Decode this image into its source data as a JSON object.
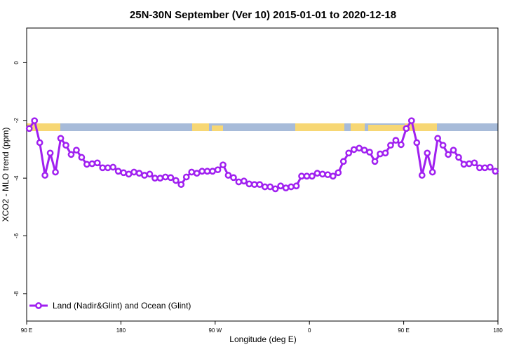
{
  "chart_data": {
    "type": "line",
    "title": "25N-30N September (Ver 10)   2015-01-01 to 2020-12-18",
    "xlabel": "Longitude (deg E)",
    "ylabel": "XCO2 - MLO trend (ppm)",
    "xlim": [
      90,
      540
    ],
    "ylim": [
      -8.95,
      1.2
    ],
    "xticks": [
      {
        "value": 90,
        "label": "90 E"
      },
      {
        "value": 180,
        "label": "180"
      },
      {
        "value": 270,
        "label": "90 W"
      },
      {
        "value": 360,
        "label": "0"
      },
      {
        "value": 450,
        "label": "90 E"
      },
      {
        "value": 540,
        "label": "180"
      }
    ],
    "yticks": [
      0,
      -2,
      -4,
      -6,
      -8
    ],
    "legend": "bottom-left",
    "x": [
      92.5,
      97.5,
      102.5,
      107.5,
      112.5,
      117.5,
      122.5,
      127.5,
      132.5,
      137.5,
      142.5,
      147.5,
      152.5,
      157.5,
      162.5,
      167.5,
      172.5,
      177.5,
      182.5,
      187.5,
      192.5,
      197.5,
      202.5,
      207.5,
      212.5,
      217.5,
      222.5,
      227.5,
      232.5,
      237.5,
      242.5,
      247.5,
      252.5,
      257.5,
      262.5,
      267.5,
      272.5,
      277.5,
      282.5,
      287.5,
      292.5,
      297.5,
      302.5,
      307.5,
      312.5,
      317.5,
      322.5,
      327.5,
      332.5,
      337.5,
      342.5,
      347.5,
      352.5,
      357.5,
      362.5,
      367.5,
      372.5,
      377.5,
      382.5,
      387.5,
      392.5,
      397.5,
      402.5,
      407.5,
      412.5,
      417.5,
      422.5,
      427.5,
      432.5,
      437.5,
      442.5,
      447.5,
      452.5,
      457.5,
      462.5,
      467.5,
      472.5,
      477.5,
      482.5,
      487.5,
      492.5,
      497.5,
      502.5,
      507.5,
      512.5,
      517.5,
      522.5,
      527.5,
      532.5,
      537.5
    ],
    "series": [
      {
        "name": "Land (Nadir&Glint) and Ocean (Glint)",
        "color": "#a020f0",
        "values": [
          -2.28,
          -2.01,
          -2.77,
          -3.9,
          -3.13,
          -3.79,
          -2.62,
          -2.86,
          -3.18,
          -3.03,
          -3.28,
          -3.52,
          -3.5,
          -3.47,
          -3.64,
          -3.64,
          -3.62,
          -3.76,
          -3.81,
          -3.86,
          -3.79,
          -3.83,
          -3.9,
          -3.86,
          -4.0,
          -4.0,
          -3.96,
          -3.98,
          -4.08,
          -4.22,
          -3.96,
          -3.79,
          -3.83,
          -3.76,
          -3.76,
          -3.76,
          -3.71,
          -3.54,
          -3.9,
          -3.98,
          -4.13,
          -4.1,
          -4.2,
          -4.22,
          -4.22,
          -4.3,
          -4.3,
          -4.37,
          -4.27,
          -4.34,
          -4.3,
          -4.27,
          -3.93,
          -3.93,
          -3.93,
          -3.83,
          -3.86,
          -3.88,
          -3.93,
          -3.81,
          -3.42,
          -3.13,
          -3.01,
          -2.96,
          -3.03,
          -3.1,
          -3.42,
          -3.16,
          -3.13,
          -2.86,
          -2.69,
          -2.84,
          -2.28,
          -2.01,
          -2.77,
          -3.9,
          -3.13,
          -3.79,
          -2.62,
          -2.86,
          -3.18,
          -3.03,
          -3.28,
          -3.52,
          -3.5,
          -3.47,
          -3.64,
          -3.64,
          -3.62,
          -3.76
        ]
      }
    ]
  }
}
